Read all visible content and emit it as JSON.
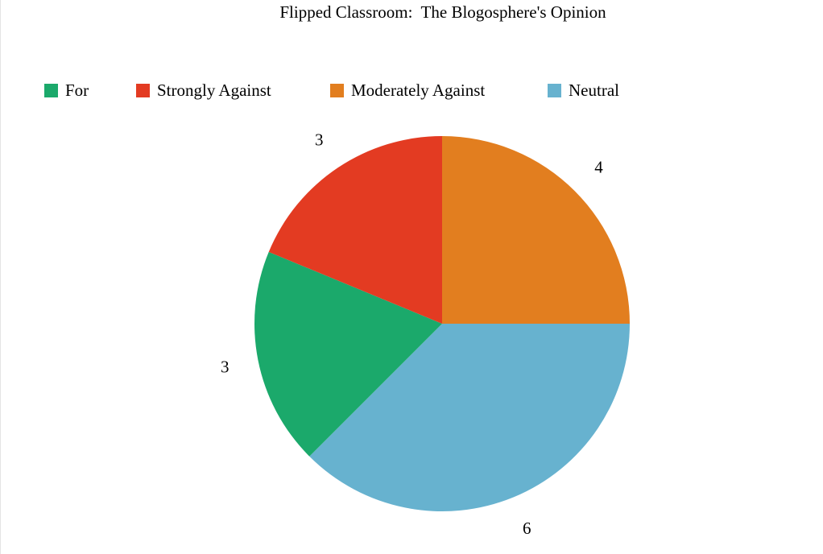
{
  "chart_data": {
    "type": "pie",
    "title": "Flipped Classroom:  The Blogosphere's Opinion",
    "legend_position": "top",
    "series": [
      {
        "name": "For",
        "value": 3,
        "label": "3",
        "color": "#1ba96b"
      },
      {
        "name": "Strongly Against",
        "value": 3,
        "label": "3",
        "color": "#e33b22"
      },
      {
        "name": "Moderately Against",
        "value": 4,
        "label": "4",
        "color": "#e27e1f"
      },
      {
        "name": "Neutral",
        "value": 6,
        "label": "6",
        "color": "#67b2cf"
      }
    ]
  }
}
